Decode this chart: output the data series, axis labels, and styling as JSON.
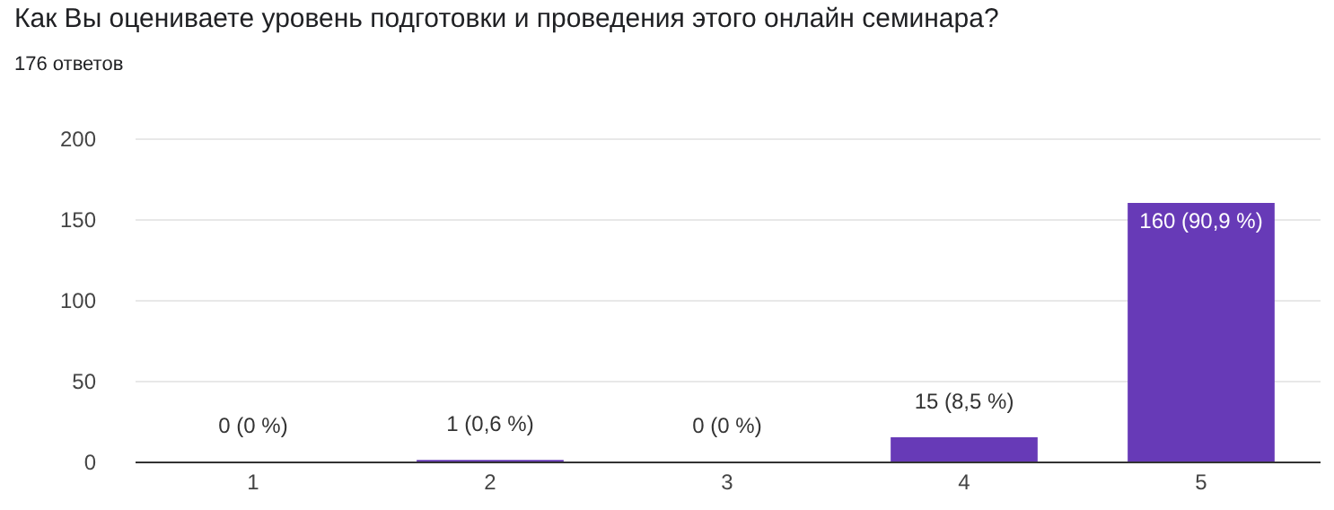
{
  "chart_data": {
    "type": "bar",
    "title": "Как Вы оцениваете уровень подготовки и проведения этого онлайн семинара?",
    "subtitle": "176 ответов",
    "categories": [
      "1",
      "2",
      "3",
      "4",
      "5"
    ],
    "values": [
      0,
      1,
      0,
      15,
      160
    ],
    "value_labels": [
      "0 (0 %)",
      "1 (0,6 %)",
      "0 (0 %)",
      "15 (8,5 %)",
      "160 (90,9 %)"
    ],
    "color": "#673ab7",
    "ylim": [
      0,
      200
    ],
    "yticks": [
      0,
      50,
      100,
      150,
      200
    ],
    "grid": "y"
  }
}
